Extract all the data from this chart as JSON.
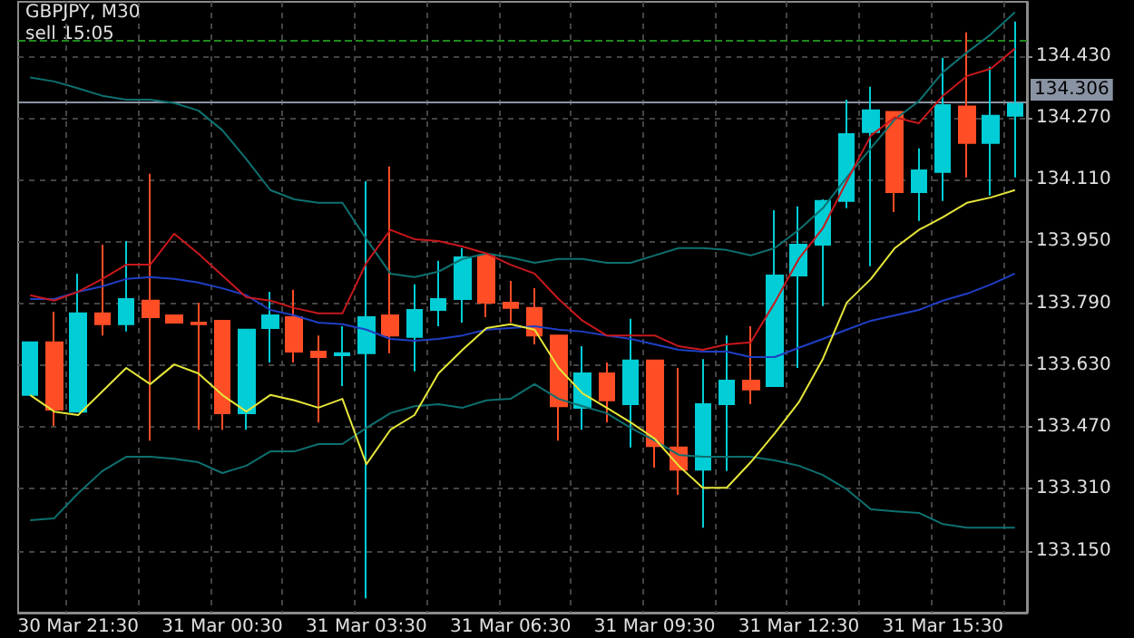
{
  "chart_data": {
    "type": "candlestick",
    "title": "GBPJPY, M30",
    "annotations": [
      "sell 15:05"
    ],
    "categories": [
      null,
      null,
      "30 Mar 21:30",
      null,
      null,
      null,
      null,
      null,
      "31 Mar 00:30",
      null,
      null,
      null,
      null,
      null,
      "31 Mar 03:30",
      null,
      null,
      null,
      null,
      null,
      "31 Mar 06:30",
      null,
      null,
      null,
      null,
      null,
      "31 Mar 09:30",
      null,
      null,
      null,
      null,
      null,
      "31 Mar 12:30",
      null,
      null,
      null,
      null,
      null,
      "31 Mar 15:30",
      null,
      null,
      null
    ],
    "ohlc": [
      [
        133.553,
        133.689,
        133.553,
        133.689
      ],
      [
        133.689,
        133.768,
        133.473,
        133.515
      ],
      [
        133.51,
        133.867,
        133.51,
        133.764
      ],
      [
        133.764,
        133.942,
        133.707,
        133.736
      ],
      [
        133.736,
        133.951,
        133.717,
        133.801
      ],
      [
        133.797,
        134.125,
        133.435,
        133.754
      ],
      [
        133.759,
        133.759,
        133.74,
        133.74
      ],
      [
        133.74,
        133.792,
        133.463,
        133.736
      ],
      [
        133.745,
        133.745,
        133.463,
        133.506
      ],
      [
        133.506,
        133.722,
        133.463,
        133.722
      ],
      [
        133.726,
        133.82,
        133.637,
        133.759
      ],
      [
        133.754,
        133.825,
        133.637,
        133.665
      ],
      [
        133.665,
        133.707,
        133.482,
        133.651
      ],
      [
        133.656,
        133.731,
        133.576,
        133.661
      ],
      [
        133.661,
        134.106,
        133.027,
        133.754
      ],
      [
        133.759,
        134.144,
        133.661,
        133.707
      ],
      [
        133.703,
        133.839,
        133.614,
        133.773
      ],
      [
        133.773,
        133.9,
        133.731,
        133.801
      ],
      [
        133.801,
        133.933,
        133.74,
        133.909
      ],
      [
        133.914,
        133.914,
        133.754,
        133.792
      ],
      [
        133.792,
        133.848,
        133.74,
        133.778
      ],
      [
        133.778,
        133.829,
        133.684,
        133.707
      ],
      [
        133.707,
        133.707,
        133.435,
        133.524
      ],
      [
        133.52,
        133.679,
        133.463,
        133.609
      ],
      [
        133.609,
        133.637,
        133.482,
        133.539
      ],
      [
        133.529,
        133.75,
        133.417,
        133.642
      ],
      [
        133.642,
        133.642,
        133.365,
        133.421
      ],
      [
        133.417,
        133.623,
        133.295,
        133.36
      ],
      [
        133.36,
        133.646,
        133.21,
        133.529
      ],
      [
        133.529,
        133.707,
        133.356,
        133.59
      ],
      [
        133.59,
        133.731,
        133.529,
        133.567
      ],
      [
        133.576,
        134.031,
        133.576,
        133.862
      ],
      [
        133.862,
        134.041,
        133.623,
        133.942
      ],
      [
        133.942,
        134.059,
        133.783,
        134.055
      ],
      [
        134.055,
        134.317,
        134.036,
        134.228
      ],
      [
        134.233,
        134.35,
        133.886,
        134.289
      ],
      [
        134.285,
        134.285,
        134.026,
        134.078
      ],
      [
        134.078,
        134.191,
        134.003,
        134.134
      ],
      [
        134.13,
        134.425,
        134.055,
        134.303
      ],
      [
        134.299,
        134.491,
        134.116,
        134.205
      ],
      [
        134.205,
        134.402,
        134.069,
        134.275
      ],
      [
        134.275,
        134.519,
        134.116,
        134.306
      ]
    ],
    "colors": [
      "#00cdd6",
      "#ff4d26",
      "#00cdd6",
      "#ff4d26",
      "#00cdd6",
      "#ff4d26",
      "#ff4d26",
      "#ff4d26",
      "#ff4d26",
      "#00cdd6",
      "#00cdd6",
      "#ff4d26",
      "#ff4d26",
      "#00cdd6",
      "#00cdd6",
      "#ff4d26",
      "#00cdd6",
      "#00cdd6",
      "#00cdd6",
      "#ff4d26",
      "#ff4d26",
      "#ff4d26",
      "#ff4d26",
      "#00cdd6",
      "#ff4d26",
      "#00cdd6",
      "#ff4d26",
      "#ff4d26",
      "#00cdd6",
      "#00cdd6",
      "#ff4d26",
      "#00cdd6",
      "#00cdd6",
      "#00cdd6",
      "#00cdd6",
      "#00cdd6",
      "#ff4d26",
      "#00cdd6",
      "#00cdd6",
      "#ff4d26",
      "#00cdd6",
      "#00cdd6"
    ],
    "series": [
      {
        "type": "line",
        "color": "#0e7070",
        "values": [
          134.374,
          134.364,
          134.346,
          134.327,
          134.317,
          134.317,
          134.308,
          134.289,
          134.238,
          134.163,
          134.083,
          134.059,
          134.05,
          134.05,
          133.956,
          133.867,
          133.858,
          133.872,
          133.905,
          133.919,
          133.909,
          133.895,
          133.905,
          133.905,
          133.895,
          133.895,
          133.914,
          133.933,
          133.933,
          133.928,
          133.914,
          133.933,
          133.98,
          134.036,
          134.116,
          134.191,
          134.266,
          134.313,
          134.388,
          134.439,
          134.486,
          134.543
        ]
      },
      {
        "type": "line",
        "color": "#0e7070",
        "values": [
          133.229,
          133.234,
          133.299,
          133.356,
          133.393,
          133.393,
          133.388,
          133.379,
          133.351,
          133.37,
          133.407,
          133.407,
          133.426,
          133.426,
          133.468,
          133.506,
          133.524,
          133.529,
          133.52,
          133.539,
          133.543,
          133.581,
          133.543,
          133.524,
          133.506,
          133.468,
          133.435,
          133.398,
          133.393,
          133.393,
          133.393,
          133.384,
          133.37,
          133.346,
          133.309,
          133.257,
          133.252,
          133.248,
          133.219,
          133.21,
          133.21,
          133.21
        ]
      },
      {
        "type": "line",
        "color": "#1f3fc4",
        "values": [
          133.801,
          133.801,
          133.82,
          133.834,
          133.853,
          133.858,
          133.853,
          133.844,
          133.829,
          133.811,
          133.773,
          133.759,
          133.74,
          133.736,
          133.722,
          133.698,
          133.693,
          133.698,
          133.707,
          133.722,
          133.726,
          133.731,
          133.722,
          133.717,
          133.707,
          133.698,
          133.684,
          133.67,
          133.665,
          133.665,
          133.651,
          133.651,
          133.675,
          133.698,
          133.722,
          133.745,
          133.759,
          133.773,
          133.797,
          133.815,
          133.839,
          133.867
        ]
      },
      {
        "type": "line",
        "color": "#c8181c",
        "values": [
          133.811,
          133.797,
          133.82,
          133.853,
          133.89,
          133.89,
          133.97,
          133.919,
          133.862,
          133.806,
          133.797,
          133.778,
          133.764,
          133.764,
          133.895,
          133.98,
          133.956,
          133.951,
          133.937,
          133.919,
          133.89,
          133.867,
          133.801,
          133.745,
          133.707,
          133.707,
          133.707,
          133.679,
          133.67,
          133.684,
          133.689,
          133.792,
          133.905,
          133.984,
          134.106,
          134.224,
          134.271,
          134.256,
          134.327,
          134.378,
          134.397,
          134.449
        ]
      },
      {
        "type": "line",
        "color": "#e6e63a",
        "values": [
          133.553,
          133.51,
          133.501,
          133.562,
          133.623,
          133.581,
          133.632,
          133.609,
          133.553,
          133.51,
          133.553,
          133.539,
          133.52,
          133.543,
          133.374,
          133.463,
          133.501,
          133.609,
          133.67,
          133.726,
          133.736,
          133.722,
          133.623,
          133.557,
          133.52,
          133.482,
          133.44,
          133.37,
          133.313,
          133.313,
          133.379,
          133.454,
          133.534,
          133.646,
          133.792,
          133.853,
          133.933,
          133.98,
          134.013,
          134.05,
          134.064,
          134.083
        ]
      }
    ],
    "ylim": [
      132.99,
      134.57
    ],
    "yticks": [
      {
        "value": 133.15,
        "label": "133.150"
      },
      {
        "value": 133.31,
        "label": "133.310"
      },
      {
        "value": 133.47,
        "label": "133.470"
      },
      {
        "value": 133.63,
        "label": "133.630"
      },
      {
        "value": 133.79,
        "label": "133.790"
      },
      {
        "value": 133.95,
        "label": "133.950"
      },
      {
        "value": 134.11,
        "label": "134.110"
      },
      {
        "value": 134.27,
        "label": "134.270"
      },
      {
        "value": 134.43,
        "label": "134.430"
      }
    ],
    "grid": true,
    "ref_lines": [
      {
        "axis": "y",
        "value": 134.306,
        "label": "134.306",
        "color": "#8a93a3",
        "line_style": "solid"
      },
      {
        "axis": "y",
        "value": 134.47,
        "color": "#1f8a1f",
        "line_style": "dashed"
      }
    ]
  }
}
